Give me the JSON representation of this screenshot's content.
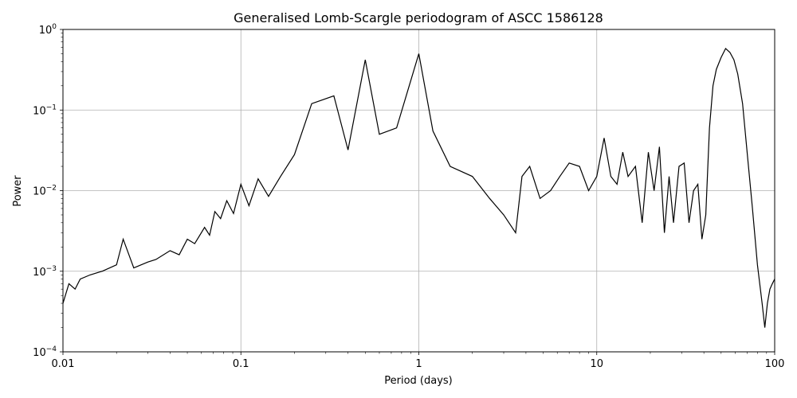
{
  "chart_data": {
    "type": "line",
    "title": "Generalised Lomb-Scargle periodogram of ASCC 1586128",
    "xlabel": "Period (days)",
    "ylabel": "Power",
    "xscale": "log",
    "yscale": "log",
    "xlim": [
      0.01,
      100
    ],
    "ylim": [
      0.0001,
      1
    ],
    "grid": true,
    "x_ticks": [
      {
        "value": 0.01,
        "label": "0.01"
      },
      {
        "value": 0.1,
        "label": "0.1"
      },
      {
        "value": 1,
        "label": "1"
      },
      {
        "value": 10,
        "label": "10"
      },
      {
        "value": 100,
        "label": "100"
      }
    ],
    "y_ticks": [
      {
        "value": 0.0001,
        "base": "10",
        "exp": "−4"
      },
      {
        "value": 0.001,
        "base": "10",
        "exp": "−3"
      },
      {
        "value": 0.01,
        "base": "10",
        "exp": "−2"
      },
      {
        "value": 0.1,
        "base": "10",
        "exp": "−1"
      },
      {
        "value": 1,
        "base": "10",
        "exp": "0"
      }
    ],
    "line_color": "#000000",
    "grid_color": "#b0b0b0",
    "series": [
      {
        "x": [
          0.01,
          0.0108,
          0.0117,
          0.0125,
          0.0142,
          0.0166,
          0.02,
          0.0218,
          0.025,
          0.03,
          0.0333,
          0.04,
          0.045,
          0.05,
          0.055,
          0.0625,
          0.0667,
          0.0714,
          0.0769,
          0.0833,
          0.0909,
          0.1,
          0.111,
          0.125,
          0.143,
          0.167,
          0.2,
          0.25,
          0.333,
          0.4,
          0.5,
          0.6,
          0.75,
          1.0,
          1.2,
          1.5,
          2.0,
          2.5,
          3.0,
          3.5,
          3.8,
          4.2,
          4.8,
          5.5,
          6.2,
          7.0,
          8.0,
          9.0,
          10.0,
          11.0,
          12.0,
          13.0,
          14.0,
          15.0,
          16.5,
          18.0,
          19.5,
          21.0,
          22.5,
          24.0,
          25.5,
          27.0,
          29.0,
          31.0,
          33.0,
          35.0,
          37.0,
          39.0,
          41.0,
          43.0,
          45.0,
          47.0,
          50.0,
          53.0,
          56.0,
          59.0,
          62.0,
          66.0,
          70.0,
          75.0,
          80.0,
          85.0,
          88.0,
          91.0,
          94.0,
          97.0,
          100.0
        ],
        "y": [
          0.0004,
          0.0007,
          0.0006,
          0.0008,
          0.0009,
          0.001,
          0.0012,
          0.0025,
          0.0011,
          0.0013,
          0.0014,
          0.0018,
          0.0016,
          0.0025,
          0.0022,
          0.0035,
          0.0028,
          0.0055,
          0.0045,
          0.0075,
          0.0052,
          0.012,
          0.0065,
          0.014,
          0.0085,
          0.015,
          0.028,
          0.12,
          0.15,
          0.032,
          0.42,
          0.05,
          0.06,
          0.5,
          0.055,
          0.02,
          0.015,
          0.008,
          0.005,
          0.003,
          0.015,
          0.02,
          0.008,
          0.01,
          0.015,
          0.022,
          0.02,
          0.01,
          0.015,
          0.045,
          0.015,
          0.012,
          0.03,
          0.015,
          0.02,
          0.004,
          0.03,
          0.01,
          0.035,
          0.003,
          0.015,
          0.004,
          0.02,
          0.022,
          0.004,
          0.01,
          0.012,
          0.0025,
          0.005,
          0.06,
          0.2,
          0.32,
          0.45,
          0.58,
          0.52,
          0.42,
          0.28,
          0.12,
          0.03,
          0.006,
          0.0012,
          0.0004,
          0.0002,
          0.0004,
          0.0006,
          0.0007,
          0.0008
        ]
      }
    ]
  }
}
